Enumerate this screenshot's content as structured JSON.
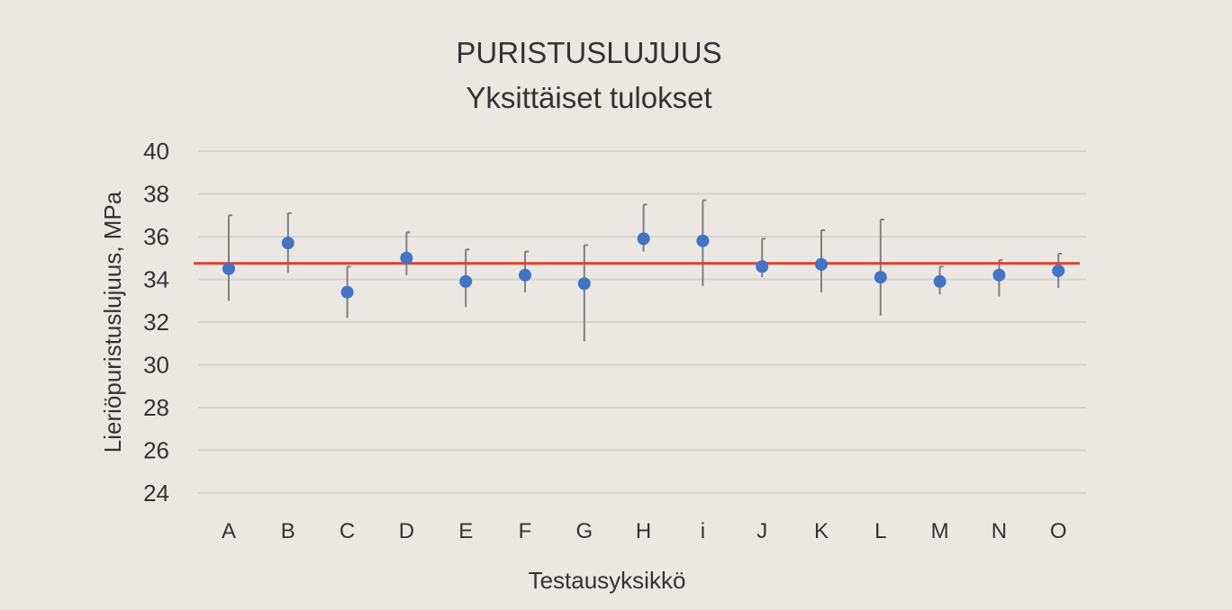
{
  "chart_data": {
    "type": "scatter",
    "title": "PURISTUSLUJUUS",
    "subtitle": "Yksittäiset tulokset",
    "xlabel": "Testausyksikkö",
    "ylabel": "Lieriöpuristuslujuus, MPa",
    "ylim": [
      24,
      40
    ],
    "yticks": [
      24,
      26,
      28,
      30,
      32,
      34,
      36,
      38,
      40
    ],
    "grid": true,
    "categories": [
      "A",
      "B",
      "C",
      "D",
      "E",
      "F",
      "G",
      "H",
      "i",
      "J",
      "K",
      "L",
      "M",
      "N",
      "O"
    ],
    "series": [
      {
        "values": [
          34.5,
          35.7,
          33.4,
          35.0,
          33.9,
          34.2,
          33.8,
          35.9,
          35.8,
          34.6,
          34.7,
          34.1,
          33.9,
          34.2,
          34.4
        ],
        "err_low": [
          33.0,
          34.3,
          32.2,
          34.2,
          32.7,
          33.4,
          31.1,
          35.3,
          33.7,
          34.1,
          33.4,
          32.3,
          33.3,
          33.2,
          33.6
        ],
        "err_high": [
          37.0,
          37.1,
          34.6,
          36.2,
          35.4,
          35.3,
          35.6,
          37.5,
          37.7,
          35.9,
          36.3,
          36.8,
          34.6,
          34.9,
          35.2
        ]
      }
    ],
    "reference_line": 34.75,
    "colors": {
      "point": "#4472c4",
      "error_bar": "#7f7f7f",
      "reference_line": "#e0412a",
      "grid": "#d7d4d0",
      "background": "#ebe8e4"
    }
  }
}
